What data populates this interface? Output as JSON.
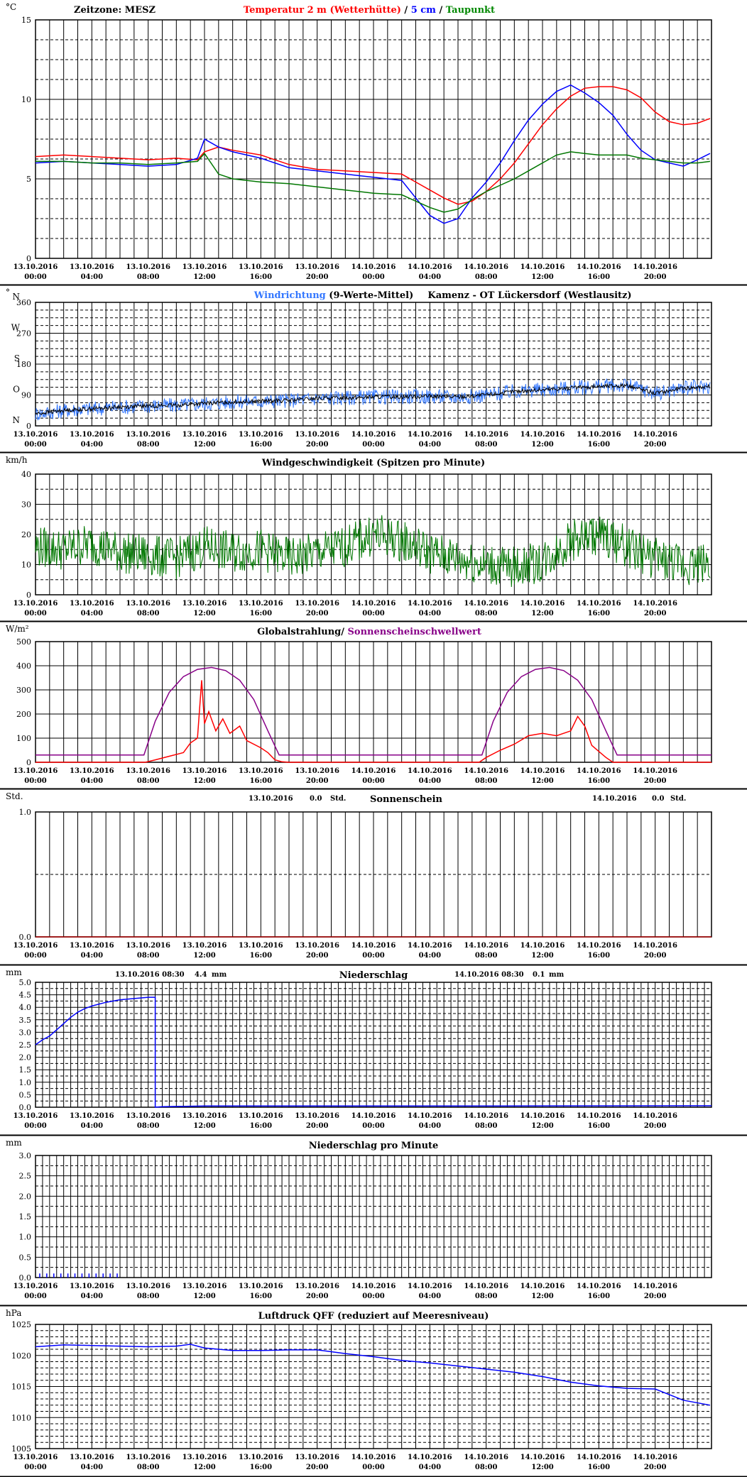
{
  "x_ticks": [
    [
      "13.10.2016",
      "00:00"
    ],
    [
      "13.10.2016",
      "04:00"
    ],
    [
      "13.10.2016",
      "08:00"
    ],
    [
      "13.10.2016",
      "12:00"
    ],
    [
      "13.10.2016",
      "16:00"
    ],
    [
      "13.10.2016",
      "20:00"
    ],
    [
      "14.10.2016",
      "00:00"
    ],
    [
      "14.10.2016",
      "04:00"
    ],
    [
      "14.10.2016",
      "08:00"
    ],
    [
      "14.10.2016",
      "12:00"
    ],
    [
      "14.10.2016",
      "16:00"
    ],
    [
      "14.10.2016",
      "20:00"
    ]
  ],
  "colors": {
    "red": "#ff0000",
    "blue": "#0000ff",
    "green": "#007700",
    "light_blue": "#3377ff",
    "purple": "#880088",
    "dark_red": "#aa0000",
    "black": "#000000"
  },
  "chart_data": [
    {
      "id": "temperature",
      "type": "line",
      "unit": "°C",
      "ylim": [
        0,
        15
      ],
      "y_ticks": [
        "0",
        "5",
        "10",
        "15"
      ],
      "title_segments": [
        {
          "text": "Temperatur 2 m (Wetterhütte)",
          "color": "#ff0000"
        },
        {
          "text": "  /  ",
          "color": "#000000"
        },
        {
          "text": "5 cm",
          "color": "#0000ff"
        },
        {
          "text": " / ",
          "color": "#000000"
        },
        {
          "text": "Taupunkt",
          "color": "#008800"
        }
      ],
      "note": "Zeitzone: MESZ",
      "x_hours": [
        0,
        2,
        4,
        6,
        8,
        10,
        11.5,
        12,
        13,
        14,
        16,
        18,
        20,
        22,
        24,
        26,
        27,
        28,
        29,
        30,
        31,
        32,
        33,
        34,
        35,
        36,
        37,
        38,
        39,
        40,
        41,
        42,
        43,
        44,
        45,
        46,
        47,
        47.9
      ],
      "series": [
        {
          "name": "Temperatur 2 m (Wetterhütte)",
          "color": "#ff0000",
          "values": [
            6.4,
            6.5,
            6.4,
            6.3,
            6.2,
            6.3,
            6.2,
            6.7,
            7.0,
            6.8,
            6.5,
            5.9,
            5.6,
            5.5,
            5.4,
            5.3,
            4.8,
            4.3,
            3.8,
            3.4,
            3.6,
            4.2,
            5.0,
            6.0,
            7.2,
            8.4,
            9.4,
            10.2,
            10.7,
            10.8,
            10.8,
            10.6,
            10.1,
            9.2,
            8.6,
            8.4,
            8.5,
            8.8
          ]
        },
        {
          "name": "5 cm",
          "color": "#0000ff",
          "values": [
            6.0,
            6.1,
            6.0,
            5.9,
            5.8,
            5.9,
            6.3,
            7.5,
            7.0,
            6.7,
            6.3,
            5.7,
            5.5,
            5.3,
            5.1,
            4.9,
            3.8,
            2.7,
            2.2,
            2.5,
            3.8,
            4.8,
            6.0,
            7.4,
            8.7,
            9.7,
            10.5,
            10.9,
            10.4,
            9.8,
            9.0,
            7.8,
            6.8,
            6.2,
            6.0,
            5.8,
            6.2,
            6.6
          ]
        },
        {
          "name": "Taupunkt",
          "color": "#007700",
          "values": [
            6.1,
            6.1,
            6.0,
            6.0,
            5.9,
            6.0,
            6.1,
            6.6,
            5.3,
            5.0,
            4.8,
            4.7,
            4.5,
            4.3,
            4.1,
            4.0,
            3.6,
            3.2,
            2.9,
            3.1,
            3.7,
            4.2,
            4.6,
            5.0,
            5.5,
            6.0,
            6.5,
            6.7,
            6.6,
            6.5,
            6.5,
            6.5,
            6.3,
            6.2,
            6.1,
            6.0,
            6.0,
            6.1
          ]
        }
      ]
    },
    {
      "id": "wind_direction",
      "type": "line",
      "unit": "°",
      "ylim": [
        0,
        360
      ],
      "y_ticks": [
        "0",
        "90",
        "180",
        "270",
        "360"
      ],
      "y_letters": [
        [
          "N",
          0
        ],
        [
          "O",
          90
        ],
        [
          "S",
          180
        ],
        [
          "W",
          270
        ],
        [
          "N",
          360
        ]
      ],
      "title_segments": [
        {
          "text": "Windrichtung",
          "color": "#3377ff"
        },
        {
          "text": " (9-Werte-Mittel)",
          "color": "#000000"
        }
      ],
      "station": "Kamenz - OT Lückersdorf (Westlausitz)",
      "x_hours": [
        0,
        2,
        4,
        6,
        8,
        10,
        12,
        14,
        16,
        18,
        20,
        22,
        24,
        26,
        28,
        30,
        32,
        34,
        36,
        38,
        40,
        42,
        44,
        46,
        47.9
      ],
      "series": [
        {
          "name": "Windrichtung",
          "color": "#3377ff",
          "noise": 22,
          "values": [
            35,
            45,
            50,
            55,
            58,
            60,
            65,
            70,
            72,
            74,
            80,
            82,
            84,
            85,
            86,
            84,
            90,
            100,
            105,
            110,
            115,
            118,
            95,
            110,
            115
          ]
        },
        {
          "name": "9-Werte-Mittel",
          "color": "#000000",
          "noise": 6,
          "values": [
            35,
            45,
            50,
            55,
            58,
            60,
            65,
            70,
            72,
            74,
            80,
            82,
            84,
            85,
            86,
            84,
            90,
            100,
            105,
            110,
            115,
            118,
            95,
            110,
            115
          ]
        }
      ]
    },
    {
      "id": "wind_speed",
      "type": "line",
      "unit": "km/h",
      "ylim": [
        0,
        40
      ],
      "y_ticks": [
        "0",
        "10",
        "20",
        "30",
        "40"
      ],
      "title": "Windgeschwindigkeit (Spitzen pro Minute)",
      "x_hours": [
        0,
        2,
        4,
        6,
        8,
        10,
        12,
        14,
        16,
        18,
        20,
        22,
        24,
        26,
        28,
        30,
        32,
        34,
        36,
        38,
        40,
        42,
        44,
        46,
        47.9
      ],
      "series": [
        {
          "name": "Windgeschwindigkeit",
          "color": "#007700",
          "noise": 7,
          "values": [
            16,
            15,
            17,
            14,
            13,
            12,
            16,
            14,
            15,
            12,
            14,
            16,
            20,
            18,
            14,
            12,
            10,
            9,
            11,
            18,
            20,
            16,
            12,
            10,
            11
          ]
        }
      ]
    },
    {
      "id": "radiation",
      "type": "line",
      "unit": "W/m²",
      "ylim": [
        0,
        500
      ],
      "y_ticks": [
        "0",
        "100",
        "200",
        "300",
        "400",
        "500"
      ],
      "title_segments": [
        {
          "text": "Globalstrahlung/ ",
          "color": "#000000"
        },
        {
          "text": "Sonnenscheinschwellwert",
          "color": "#880088"
        }
      ],
      "series": [
        {
          "name": "Globalstrahlung",
          "color": "#ff0000",
          "x_hours": [
            0,
            7.8,
            8.5,
            9.5,
            10.5,
            11.0,
            11.5,
            11.8,
            12.0,
            12.3,
            12.8,
            13.3,
            13.8,
            14.5,
            15.0,
            16.0,
            16.5,
            17.0,
            17.5,
            18.0,
            31.5,
            32.0,
            33.0,
            34.0,
            35.0,
            36.0,
            37.0,
            38.0,
            38.5,
            39.0,
            39.5,
            40.0,
            40.5,
            41.0,
            48.0
          ],
          "values": [
            0,
            0,
            10,
            25,
            40,
            80,
            100,
            340,
            160,
            210,
            130,
            180,
            120,
            150,
            90,
            60,
            40,
            10,
            2,
            0,
            0,
            20,
            50,
            75,
            110,
            120,
            110,
            130,
            190,
            150,
            70,
            45,
            20,
            0,
            0
          ]
        },
        {
          "name": "Sonnenscheinschwellwert",
          "color": "#880088",
          "x_hours": [
            0,
            7.7,
            8.5,
            9.5,
            10.5,
            11.5,
            12.5,
            13.5,
            14.5,
            15.5,
            16.5,
            17.3,
            18.0,
            31.7,
            32.5,
            33.5,
            34.5,
            35.5,
            36.5,
            37.5,
            38.5,
            39.5,
            40.5,
            41.3,
            48.0
          ],
          "values": [
            30,
            30,
            170,
            290,
            355,
            385,
            393,
            380,
            340,
            260,
            130,
            30,
            30,
            30,
            170,
            290,
            355,
            385,
            393,
            380,
            340,
            260,
            130,
            30,
            30
          ]
        }
      ]
    },
    {
      "id": "sunshine",
      "type": "line",
      "unit": "Std.",
      "ylim": [
        0,
        1.0
      ],
      "y_ticks": [
        "0.0",
        "1.0"
      ],
      "title": "Sonnenschein",
      "summary": [
        {
          "date": "13.10.2016",
          "value": "0.0",
          "unit": "Std."
        },
        {
          "date": "14.10.2016",
          "value": "0.0",
          "unit": "Std."
        }
      ],
      "series": [
        {
          "name": "Sonnenschein",
          "color": "#aa0000",
          "x_hours": [
            0,
            48
          ],
          "values": [
            0,
            0
          ]
        }
      ]
    },
    {
      "id": "precipitation",
      "type": "line",
      "unit": "mm",
      "ylim": [
        0,
        5.0
      ],
      "y_ticks": [
        "0.0",
        "0.5",
        "1.0",
        "1.5",
        "2.0",
        "2.5",
        "3.0",
        "3.5",
        "4.0",
        "4.5",
        "5.0"
      ],
      "title": "Niederschlag",
      "summary": [
        {
          "date": "13.10.2016 08:30",
          "value": "4.4",
          "unit": "mm"
        },
        {
          "date": "14.10.2016 08:30",
          "value": "0.1",
          "unit": "mm"
        }
      ],
      "series": [
        {
          "name": "Niederschlag",
          "color": "#0000ff",
          "x_hours": [
            0,
            0.5,
            1.0,
            1.5,
            2.0,
            2.5,
            3.0,
            3.5,
            4.0,
            5.0,
            6.0,
            7.0,
            8.0,
            8.5,
            8.5,
            9.0,
            12.0,
            20.0,
            32.5,
            33.0,
            48.0
          ],
          "values": [
            2.5,
            2.7,
            2.85,
            3.1,
            3.35,
            3.6,
            3.8,
            3.95,
            4.05,
            4.2,
            4.3,
            4.35,
            4.4,
            4.4,
            0.0,
            0.02,
            0.05,
            0.05,
            0.05,
            0.05,
            0.06
          ]
        }
      ]
    },
    {
      "id": "precipitation_per_minute",
      "type": "line",
      "unit": "mm",
      "ylim": [
        0,
        3.0
      ],
      "y_ticks": [
        "0.0",
        "0.5",
        "1.0",
        "1.5",
        "2.0",
        "2.5",
        "3.0"
      ],
      "title": "Niederschlag pro Minute",
      "series": [
        {
          "name": "Niederschlag pro Minute",
          "color": "#0000ff",
          "bars": [
            0.3,
            0.8,
            1.3,
            1.8,
            2.3,
            2.8,
            3.3,
            3.8,
            4.3,
            4.8,
            5.3,
            5.8
          ],
          "bar_value": 0.1
        }
      ]
    },
    {
      "id": "pressure",
      "type": "line",
      "unit": "hPa",
      "ylim": [
        1005,
        1025
      ],
      "y_ticks": [
        "1005",
        "1010",
        "1015",
        "1020",
        "1025"
      ],
      "title": "Luftdruck QFF (reduziert auf Meeresniveau)",
      "x_hours": [
        0,
        2,
        4,
        6,
        8,
        10,
        11,
        12,
        14,
        16,
        18,
        20,
        22,
        24,
        26,
        28,
        30,
        32,
        34,
        36,
        38,
        40,
        42,
        44,
        46,
        47.9
      ],
      "series": [
        {
          "name": "Luftdruck QFF",
          "color": "#0000ff",
          "values": [
            1021.4,
            1021.7,
            1021.6,
            1021.5,
            1021.4,
            1021.5,
            1021.8,
            1021.2,
            1020.8,
            1020.8,
            1020.9,
            1020.9,
            1020.3,
            1019.8,
            1019.2,
            1018.8,
            1018.3,
            1017.8,
            1017.3,
            1016.6,
            1015.7,
            1015.1,
            1014.7,
            1014.6,
            1012.8,
            1012.0
          ]
        }
      ]
    }
  ]
}
